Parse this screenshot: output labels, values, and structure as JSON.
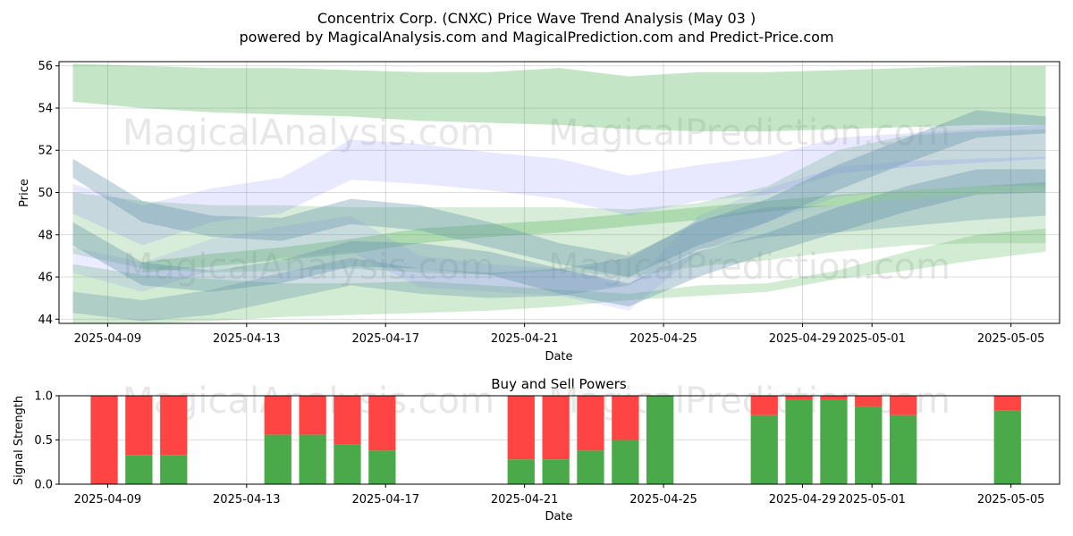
{
  "figure": {
    "title_line1": "Concentrix Corp. (CNXC) Price Wave Trend Analysis (May 03 )",
    "title_line2": "powered by MagicalAnalysis.com and MagicalPrediction.com and Predict-Price.com",
    "watermarks": [
      "MagicalAnalysis.com",
      "MagicalPrediction.com"
    ]
  },
  "chart_data": [
    {
      "type": "area",
      "name": "price-wave-trend",
      "xlabel": "Date",
      "ylabel": "Price",
      "x_tick_labels": [
        "2025-04-09",
        "2025-04-13",
        "2025-04-17",
        "2025-04-21",
        "2025-04-25",
        "2025-04-29",
        "2025-05-01",
        "2025-05-05"
      ],
      "x_tick_days": [
        8,
        12,
        16,
        20,
        24,
        28,
        30,
        34
      ],
      "x_axis_day0": "2025-04-01",
      "xlim_days": [
        6.6,
        35.4
      ],
      "ylim": [
        43.8,
        56.2
      ],
      "y_ticks": [
        44,
        46,
        48,
        50,
        52,
        54,
        56
      ],
      "grid": true,
      "bands": [
        {
          "color": "green",
          "alpha": 0.32,
          "days": [
            7,
            9,
            11,
            13,
            15,
            17,
            19,
            21,
            23,
            25,
            27,
            29,
            31,
            33,
            35
          ],
          "upper": [
            56.1,
            56.0,
            55.9,
            55.9,
            55.8,
            55.7,
            55.7,
            55.9,
            55.5,
            55.7,
            55.7,
            55.8,
            55.9,
            56.0,
            56.0
          ],
          "lower": [
            54.3,
            54.0,
            53.8,
            53.7,
            53.6,
            53.4,
            53.3,
            53.2,
            53.0,
            52.9,
            52.9,
            53.0,
            53.1,
            53.2,
            53.2
          ]
        },
        {
          "color": "green",
          "alpha": 0.22,
          "days": [
            7,
            9,
            11,
            13,
            15,
            17,
            19,
            21,
            23,
            25,
            27,
            29,
            31,
            33,
            35
          ],
          "upper": [
            50.0,
            49.6,
            49.4,
            49.4,
            49.3,
            49.3,
            49.3,
            49.3,
            49.2,
            49.5,
            50.3,
            52.0,
            52.7,
            52.9,
            53.0
          ],
          "lower": [
            47.1,
            46.4,
            46.2,
            46.3,
            46.4,
            46.2,
            46.1,
            46.3,
            46.0,
            46.5,
            46.8,
            47.2,
            47.5,
            47.6,
            47.6
          ]
        },
        {
          "color": "green",
          "alpha": 0.25,
          "days": [
            7,
            9,
            11,
            13,
            15,
            17,
            19,
            21,
            23,
            25,
            27,
            29,
            31,
            33,
            35
          ],
          "upper": [
            46.6,
            46.1,
            45.9,
            45.7,
            45.7,
            45.8,
            45.6,
            45.4,
            45.2,
            45.6,
            45.7,
            46.3,
            47.2,
            48.0,
            48.3
          ],
          "lower": [
            43.8,
            43.8,
            43.9,
            44.1,
            44.2,
            44.3,
            44.4,
            44.6,
            44.9,
            45.1,
            45.3,
            45.9,
            46.3,
            46.8,
            47.2
          ]
        },
        {
          "color": "green",
          "alpha": 0.3,
          "days": [
            9,
            11,
            13,
            15,
            17,
            19,
            21,
            23,
            25,
            27,
            29,
            31,
            33,
            35
          ],
          "upper": [
            46.7,
            47.1,
            47.4,
            47.8,
            48.3,
            48.5,
            48.7,
            49.0,
            49.3,
            49.6,
            49.9,
            50.1,
            50.3,
            50.5
          ],
          "lower": [
            46.2,
            46.5,
            46.8,
            47.1,
            47.6,
            47.9,
            48.1,
            48.4,
            48.7,
            49.1,
            49.4,
            49.7,
            49.9,
            50.1
          ]
        },
        {
          "color": "blue",
          "alpha": 0.15,
          "days": [
            7,
            9,
            11,
            13,
            15,
            17,
            19,
            21,
            23,
            25,
            27,
            29,
            31,
            33,
            35
          ],
          "upper": [
            50.4,
            49.4,
            50.2,
            50.7,
            52.5,
            52.3,
            51.9,
            51.6,
            50.8,
            51.3,
            51.7,
            52.6,
            52.8,
            53.0,
            53.2
          ],
          "lower": [
            49.0,
            47.5,
            48.6,
            49.0,
            50.6,
            50.4,
            50.1,
            49.7,
            48.9,
            49.6,
            49.9,
            50.9,
            51.2,
            51.4,
            51.6
          ]
        },
        {
          "color": "blue",
          "alpha": 0.12,
          "days": [
            7,
            9,
            11,
            13,
            15,
            17,
            19,
            21,
            23,
            25,
            27,
            29,
            31,
            33,
            35
          ],
          "upper": [
            47.4,
            46.7,
            47.8,
            48.4,
            48.9,
            47.0,
            46.6,
            46.4,
            45.6,
            48.9,
            50.2,
            51.2,
            51.5,
            51.6,
            51.7
          ],
          "lower": [
            46.2,
            45.3,
            46.3,
            46.9,
            47.2,
            45.5,
            45.3,
            45.1,
            44.4,
            47.1,
            48.6,
            49.8,
            50.1,
            50.3,
            50.3
          ]
        },
        {
          "color": "bluegray",
          "alpha": 0.35,
          "days": [
            7,
            9,
            11,
            13,
            15,
            17,
            19,
            21,
            23,
            25,
            27,
            29,
            31,
            33,
            35
          ],
          "upper": [
            51.6,
            49.6,
            48.9,
            48.8,
            49.7,
            49.4,
            48.6,
            47.6,
            47.0,
            48.6,
            49.7,
            51.3,
            52.6,
            53.9,
            53.6
          ],
          "lower": [
            50.7,
            48.6,
            47.9,
            47.7,
            48.5,
            48.2,
            47.4,
            46.6,
            46.0,
            47.5,
            48.6,
            50.1,
            51.4,
            52.6,
            52.8
          ]
        },
        {
          "color": "bluegray",
          "alpha": 0.35,
          "days": [
            7,
            9,
            11,
            13,
            15,
            17,
            19,
            21,
            23,
            25,
            27,
            29,
            31,
            33,
            35
          ],
          "upper": [
            48.6,
            46.7,
            46.3,
            46.8,
            47.7,
            47.6,
            47.2,
            46.4,
            45.7,
            47.2,
            48.1,
            49.3,
            50.3,
            51.1,
            51.1
          ],
          "lower": [
            47.5,
            45.6,
            45.3,
            45.7,
            46.5,
            46.4,
            46.1,
            45.2,
            44.6,
            46.0,
            47.1,
            48.1,
            49.1,
            49.9,
            50.0
          ]
        },
        {
          "color": "bluegray",
          "alpha": 0.3,
          "days": [
            7,
            9,
            11,
            13,
            15,
            17,
            19,
            21,
            23,
            25,
            27,
            29,
            31,
            33,
            35
          ],
          "upper": [
            45.3,
            44.9,
            45.4,
            46.2,
            46.9,
            46.4,
            46.2,
            46.4,
            46.9,
            48.7,
            49.3,
            49.4,
            49.7,
            49.9,
            50.1
          ],
          "lower": [
            44.3,
            43.9,
            44.2,
            44.9,
            45.6,
            45.2,
            45.0,
            45.1,
            45.6,
            47.3,
            47.9,
            48.1,
            48.4,
            48.7,
            48.9
          ]
        }
      ]
    },
    {
      "type": "bar",
      "name": "buy-sell-powers",
      "title": "Buy and Sell Powers",
      "xlabel": "Date",
      "ylabel": "Signal Strength",
      "ylim": [
        0.0,
        1.0
      ],
      "y_tick_labels": [
        "0.0",
        "0.5",
        "1.0"
      ],
      "x_tick_labels": [
        "2025-04-09",
        "2025-04-13",
        "2025-04-17",
        "2025-04-21",
        "2025-04-25",
        "2025-04-29",
        "2025-05-01",
        "2025-05-05"
      ],
      "x_tick_days": [
        8,
        12,
        16,
        20,
        24,
        28,
        30,
        34
      ],
      "x_axis_day0": "2025-04-01",
      "xlim_days": [
        6.6,
        35.4
      ],
      "series": [
        {
          "name": "Buy",
          "color": "#4aaa4a"
        },
        {
          "name": "Sell",
          "color": "#ff4444"
        }
      ],
      "bars": [
        {
          "date": "2025-04-08",
          "day": 7.9,
          "buy": 0.0
        },
        {
          "date": "2025-04-09",
          "day": 8.9,
          "buy": 0.33
        },
        {
          "date": "2025-04-10",
          "day": 9.9,
          "buy": 0.33
        },
        {
          "date": "2025-04-13",
          "day": 12.9,
          "buy": 0.56
        },
        {
          "date": "2025-04-14",
          "day": 13.9,
          "buy": 0.56
        },
        {
          "date": "2025-04-15",
          "day": 14.9,
          "buy": 0.45
        },
        {
          "date": "2025-04-16",
          "day": 15.9,
          "buy": 0.38
        },
        {
          "date": "2025-04-20",
          "day": 19.9,
          "buy": 0.28
        },
        {
          "date": "2025-04-21",
          "day": 20.9,
          "buy": 0.28
        },
        {
          "date": "2025-04-22",
          "day": 21.9,
          "buy": 0.38
        },
        {
          "date": "2025-04-23",
          "day": 22.9,
          "buy": 0.5
        },
        {
          "date": "2025-04-24",
          "day": 23.9,
          "buy": 1.0
        },
        {
          "date": "2025-04-27",
          "day": 26.9,
          "buy": 0.78
        },
        {
          "date": "2025-04-28",
          "day": 27.9,
          "buy": 0.95
        },
        {
          "date": "2025-04-29",
          "day": 28.9,
          "buy": 0.95
        },
        {
          "date": "2025-04-30",
          "day": 29.9,
          "buy": 0.88
        },
        {
          "date": "2025-05-01",
          "day": 30.9,
          "buy": 0.78
        },
        {
          "date": "2025-05-04",
          "day": 33.9,
          "buy": 0.83
        }
      ]
    }
  ]
}
